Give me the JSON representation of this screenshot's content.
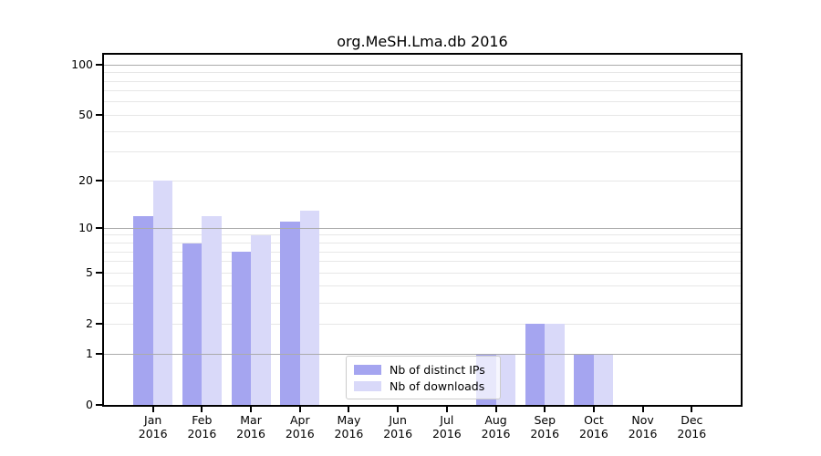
{
  "chart_data": {
    "type": "bar",
    "title": "org.MeSH.Lma.db 2016",
    "year_label": "2016",
    "months": [
      "Jan",
      "Feb",
      "Mar",
      "Apr",
      "May",
      "Jun",
      "Jul",
      "Aug",
      "Sep",
      "Oct",
      "Nov",
      "Dec"
    ],
    "categories": [
      "Jan 2016",
      "Feb 2016",
      "Mar 2016",
      "Apr 2016",
      "May 2016",
      "Jun 2016",
      "Jul 2016",
      "Aug 2016",
      "Sep 2016",
      "Oct 2016",
      "Nov 2016",
      "Dec 2016"
    ],
    "series": [
      {
        "name": "Nb of distinct IPs",
        "color": "#a5a5f0",
        "values": [
          12,
          8,
          7,
          11,
          0,
          0,
          0,
          1,
          2,
          1,
          0,
          0
        ]
      },
      {
        "name": "Nb of downloads",
        "color": "#d9d9f9",
        "values": [
          20,
          12,
          9,
          13,
          0,
          0,
          0,
          1,
          2,
          1,
          0,
          0
        ]
      }
    ],
    "y_scale": "log10(1+x)",
    "ylim": [
      0,
      115
    ],
    "y_ticks": [
      0,
      1,
      2,
      5,
      10,
      20,
      50,
      100
    ],
    "major_gridlines": [
      1,
      10,
      100
    ],
    "minor_gridlines": [
      2,
      3,
      4,
      5,
      6,
      7,
      8,
      9,
      20,
      30,
      40,
      50,
      60,
      70,
      80,
      90
    ],
    "grid": "on, drawn above bars",
    "legend_position": "lower center",
    "colors": {
      "distinct_ips": "#a5a5f0",
      "downloads": "#d9d9f9",
      "major_grid": "#ababab",
      "minor_grid": "#e7e7e7",
      "axis": "#000000",
      "legend_border": "#cccccc",
      "text": "#000000"
    }
  }
}
